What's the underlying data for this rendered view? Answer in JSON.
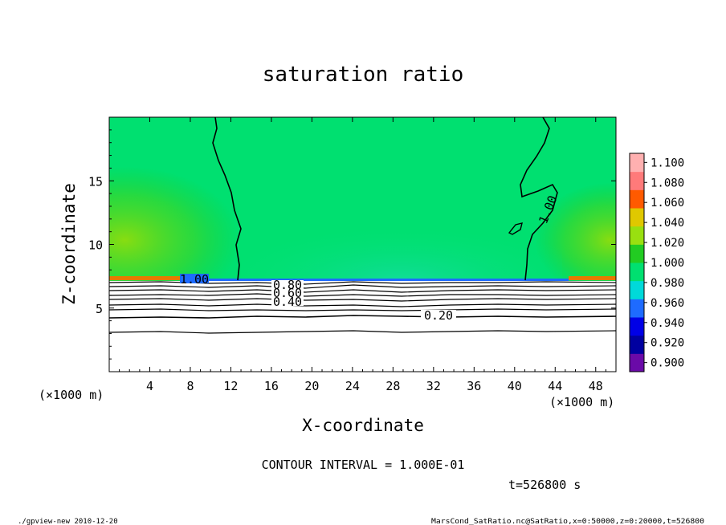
{
  "chart_data": {
    "type": "heatmap",
    "title": "saturation ratio",
    "xlabel": "X-coordinate",
    "ylabel": "Z-coordinate",
    "x_unit_label": "(×1000 m)",
    "z_unit_label": "(×1000 m)",
    "xlim": [
      0,
      50
    ],
    "ylim": [
      0,
      20
    ],
    "x_ticks": [
      4,
      8,
      12,
      16,
      20,
      24,
      28,
      32,
      36,
      40,
      44,
      48
    ],
    "y_ticks": [
      5,
      10,
      15
    ],
    "colorbar": {
      "levels": [
        0.9,
        0.92,
        0.94,
        0.96,
        0.98,
        1.0,
        1.02,
        1.04,
        1.06,
        1.08,
        1.1
      ],
      "labels": [
        "0.900",
        "0.920",
        "0.940",
        "0.960",
        "0.980",
        "1.000",
        "1.020",
        "1.040",
        "1.060",
        "1.080",
        "1.100"
      ],
      "colors": [
        "#6a0aa8",
        "#0000a0",
        "#0000e6",
        "#1e6bff",
        "#00d9d9",
        "#00e070",
        "#22cc22",
        "#99e010",
        "#e0c800",
        "#ff5a00",
        "#ff7a7a",
        "#ffb0b0"
      ]
    },
    "contour_labels": [
      {
        "text": "1.00",
        "x": 42.5,
        "z": 13.6
      },
      {
        "text": "1.00",
        "x": 8.0,
        "z": 7.2
      },
      {
        "text": "0.80",
        "x": 17.2,
        "z": 6.9
      },
      {
        "text": "0.60",
        "x": 17.2,
        "z": 6.6
      },
      {
        "text": "0.40",
        "x": 17.2,
        "z": 5.8
      },
      {
        "text": "0.20",
        "x": 32.5,
        "z": 4.4
      }
    ],
    "contour_interval_text": "CONTOUR INTERVAL = 1.000E-01",
    "time_text": "t=526800 s"
  },
  "footer": {
    "left": "./gpview-new  2010-12-20",
    "right": "MarsCond_SatRatio.nc@SatRatio,x=0:50000,z=0:20000,t=526800"
  }
}
